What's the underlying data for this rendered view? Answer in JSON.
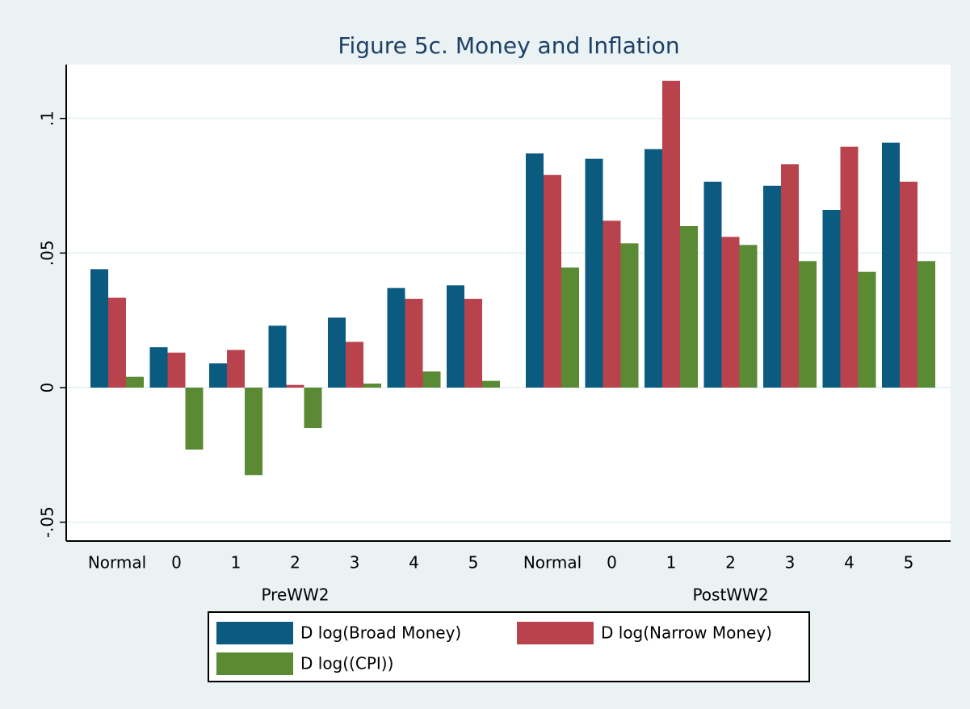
{
  "chart_data": {
    "type": "bar",
    "title": "Figure 5c. Money and Inflation",
    "groups": [
      {
        "name": "PreWW2",
        "categories": [
          "Normal",
          "0",
          "1",
          "2",
          "3",
          "4",
          "5"
        ]
      },
      {
        "name": "PostWW2",
        "categories": [
          "Normal",
          "0",
          "1",
          "2",
          "3",
          "4",
          "5"
        ]
      }
    ],
    "series": [
      {
        "name": "D log(Broad Money)",
        "color": "#0b5a80",
        "values": [
          0.044,
          0.015,
          0.009,
          0.023,
          0.026,
          0.037,
          0.038,
          0.087,
          0.085,
          0.0886,
          0.0765,
          0.075,
          0.066,
          0.091
        ]
      },
      {
        "name": "D log(Narrow Money)",
        "color": "#b8434c",
        "values": [
          0.0334,
          0.013,
          0.014,
          0.001,
          0.017,
          0.033,
          0.033,
          0.079,
          0.062,
          0.114,
          0.056,
          0.083,
          0.0895,
          0.0765
        ]
      },
      {
        "name": "D log((CPI))",
        "color": "#5a8a34",
        "values": [
          0.004,
          -0.023,
          -0.0325,
          -0.015,
          0.0015,
          0.006,
          0.0025,
          0.0446,
          0.0536,
          0.06,
          0.053,
          0.047,
          0.043,
          0.047
        ]
      }
    ],
    "ylim": [
      -0.057,
      0.12
    ],
    "yticks": [
      {
        "value": -0.05,
        "label": "-.05"
      },
      0,
      {
        "value": 0.05,
        "label": ".05"
      },
      {
        "value": 0.1,
        "label": ".1"
      }
    ],
    "grid": true,
    "legend": "bottom"
  }
}
